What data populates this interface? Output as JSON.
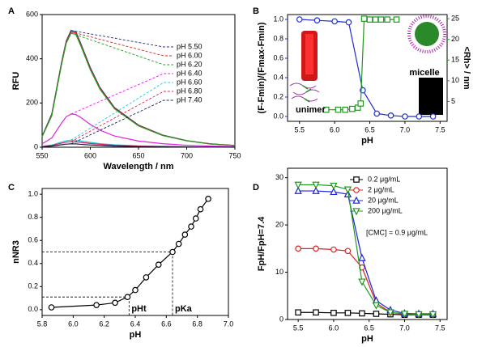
{
  "chart_data": [
    {
      "type": "line",
      "label": "A",
      "xlabel": "Wavelength / nm",
      "ylabel": "RFU",
      "xlim": [
        550,
        750
      ],
      "xticks": [
        550,
        600,
        650,
        700,
        750
      ],
      "ylim": [
        0,
        600
      ],
      "yticks": [
        0,
        200,
        400,
        600
      ],
      "legend": "right",
      "x": [
        550,
        560,
        570,
        575,
        580,
        585,
        590,
        600,
        610,
        625,
        650,
        675,
        700,
        725,
        750
      ],
      "series": [
        {
          "name": "pH 5.50",
          "color": "#1f2a80",
          "values": [
            50,
            150,
            380,
            480,
            528,
            522,
            470,
            360,
            270,
            180,
            100,
            55,
            30,
            15,
            8
          ]
        },
        {
          "name": "pH 6.00",
          "color": "#e0201f",
          "values": [
            48,
            145,
            375,
            475,
            522,
            516,
            465,
            355,
            266,
            177,
            98,
            54,
            29,
            15,
            8
          ]
        },
        {
          "name": "pH 6.20",
          "color": "#1fa01f",
          "values": [
            47,
            142,
            370,
            470,
            516,
            510,
            460,
            350,
            262,
            174,
            96,
            53,
            29,
            14,
            8
          ]
        },
        {
          "name": "pH 6.40",
          "color": "#e020e0",
          "values": [
            15,
            42,
            108,
            138,
            150,
            148,
            135,
            103,
            77,
            51,
            28,
            16,
            9,
            5,
            3
          ]
        },
        {
          "name": "pH 6.60",
          "color": "#20c8e0",
          "values": [
            4,
            10,
            23,
            29,
            32,
            31,
            28,
            22,
            16,
            11,
            6,
            4,
            2,
            1,
            1
          ]
        },
        {
          "name": "pH 6.80",
          "color": "#e02050",
          "values": [
            3,
            8,
            18,
            23,
            25,
            24,
            22,
            17,
            13,
            9,
            5,
            3,
            2,
            1,
            1
          ]
        },
        {
          "name": "pH 7.40",
          "color": "#1a1a50",
          "values": [
            2,
            5,
            11,
            14,
            15,
            15,
            13,
            10,
            8,
            5,
            3,
            2,
            1,
            1,
            0
          ]
        }
      ]
    },
    {
      "type": "line",
      "label": "B",
      "xlabel": "pH",
      "ylabel": "(F-Fmin)/(Fmax-Fmin)",
      "y2label": "<Rh> / nm",
      "xlim": [
        5.33,
        7.6
      ],
      "xticks": [
        {
          "value": 5.5,
          "label": "5.5"
        },
        {
          "value": 6,
          "label": "6.0"
        },
        {
          "value": 6.5,
          "label": "6.5"
        },
        {
          "value": 7,
          "label": "7.0"
        },
        {
          "value": 7.5,
          "label": "7.5"
        }
      ],
      "ylim": [
        -0.05,
        1.05
      ],
      "yticks": [
        {
          "value": 0,
          "label": "0.0"
        },
        0.2,
        0.4,
        0.6,
        0.8,
        {
          "value": 1,
          "label": "1.0"
        }
      ],
      "y2lim": [
        0.2,
        26
      ],
      "y2ticks": [
        5,
        10,
        15,
        20,
        25
      ],
      "annotations": [
        "unimer",
        "micelle"
      ],
      "series": [
        {
          "color": "#1f2fd0",
          "marker": "circle",
          "x": [
            5.5,
            5.75,
            6.0,
            6.2,
            6.4,
            6.6,
            6.8,
            7.0,
            7.2,
            7.4
          ],
          "values": [
            1.0,
            0.99,
            0.98,
            0.97,
            0.27,
            0.03,
            0.01,
            0.0,
            0.0,
            0.0
          ]
        },
        {
          "color": "#1f9a1f",
          "marker": "square",
          "axis": "y2",
          "x": [
            5.88,
            6.05,
            6.15,
            6.25,
            6.33,
            6.37,
            6.42,
            6.5,
            6.58,
            6.66,
            6.75,
            6.88
          ],
          "values": [
            3,
            3,
            3,
            3.2,
            3.5,
            4.5,
            25,
            24.8,
            24.8,
            24.8,
            24.8,
            24.8
          ]
        }
      ]
    },
    {
      "type": "line",
      "label": "C",
      "xlabel": "pH",
      "ylabel": "nNR3",
      "xlim": [
        5.8,
        7.0
      ],
      "xticks": [
        {
          "value": 5.8,
          "label": "5.8"
        },
        {
          "value": 6,
          "label": "6.0"
        },
        {
          "value": 6.2,
          "label": "6.2"
        },
        {
          "value": 6.4,
          "label": "6.4"
        },
        {
          "value": 6.6,
          "label": "6.6"
        },
        {
          "value": 6.8,
          "label": "6.8"
        },
        {
          "value": 7,
          "label": "7.0"
        }
      ],
      "ylim": [
        -0.05,
        1.05
      ],
      "yticks": [
        {
          "value": 0,
          "label": "0.0"
        },
        0.2,
        0.4,
        0.6,
        0.8,
        {
          "value": 1,
          "label": "1.0"
        }
      ],
      "reference_lines": [
        {
          "x": 6.36,
          "y": 0.11,
          "label": "pHt"
        },
        {
          "x": 6.64,
          "y": 0.5,
          "label": "pKa"
        }
      ],
      "series": [
        {
          "color": "#000000",
          "marker": "circle",
          "x": [
            5.86,
            6.15,
            6.27,
            6.35,
            6.4,
            6.47,
            6.55,
            6.64,
            6.68,
            6.72,
            6.76,
            6.79,
            6.82,
            6.87
          ],
          "values": [
            0.02,
            0.04,
            0.06,
            0.11,
            0.17,
            0.28,
            0.39,
            0.5,
            0.57,
            0.65,
            0.72,
            0.79,
            0.87,
            0.96
          ]
        }
      ]
    },
    {
      "type": "line",
      "label": "D",
      "xlabel": "pH",
      "ylabel": "FpH/FpH=7.4",
      "xlim": [
        5.35,
        7.6
      ],
      "xticks": [
        {
          "value": 5.5,
          "label": "5.5"
        },
        {
          "value": 6,
          "label": "6.0"
        },
        {
          "value": 6.5,
          "label": "6.5"
        },
        {
          "value": 7,
          "label": "7.0"
        },
        {
          "value": 7.5,
          "label": "7.5"
        }
      ],
      "ylim": [
        0,
        32
      ],
      "yticks": [
        0,
        10,
        20,
        30
      ],
      "legend": "upper right",
      "annotations": [
        "[CMC] = 0.9 μg/mL"
      ],
      "x": [
        5.5,
        5.75,
        6.0,
        6.2,
        6.4,
        6.6,
        6.8,
        7.0,
        7.2,
        7.4
      ],
      "series": [
        {
          "name": "0.2  μg/mL",
          "color": "#000000",
          "marker": "square",
          "values": [
            1.5,
            1.5,
            1.4,
            1.4,
            1.3,
            1.2,
            1.1,
            1.0,
            1.0,
            1.0
          ]
        },
        {
          "name": "2  μg/mL",
          "color": "#e02020",
          "marker": "circle",
          "values": [
            15,
            15,
            14.8,
            14.5,
            11,
            3.5,
            1.5,
            1.1,
            1.1,
            1.1
          ]
        },
        {
          "name": "20  μg/mL",
          "color": "#2020e0",
          "marker": "triangle",
          "values": [
            27.2,
            27.2,
            27,
            26.5,
            13,
            4,
            2,
            1.3,
            1.2,
            1.2
          ]
        },
        {
          "name": "200  μg/mL",
          "color": "#1f9a1f",
          "marker": "triangle-down",
          "values": [
            28.5,
            28.5,
            28.3,
            27.5,
            8,
            3,
            1.5,
            1.2,
            1.1,
            1.1
          ]
        }
      ]
    }
  ]
}
